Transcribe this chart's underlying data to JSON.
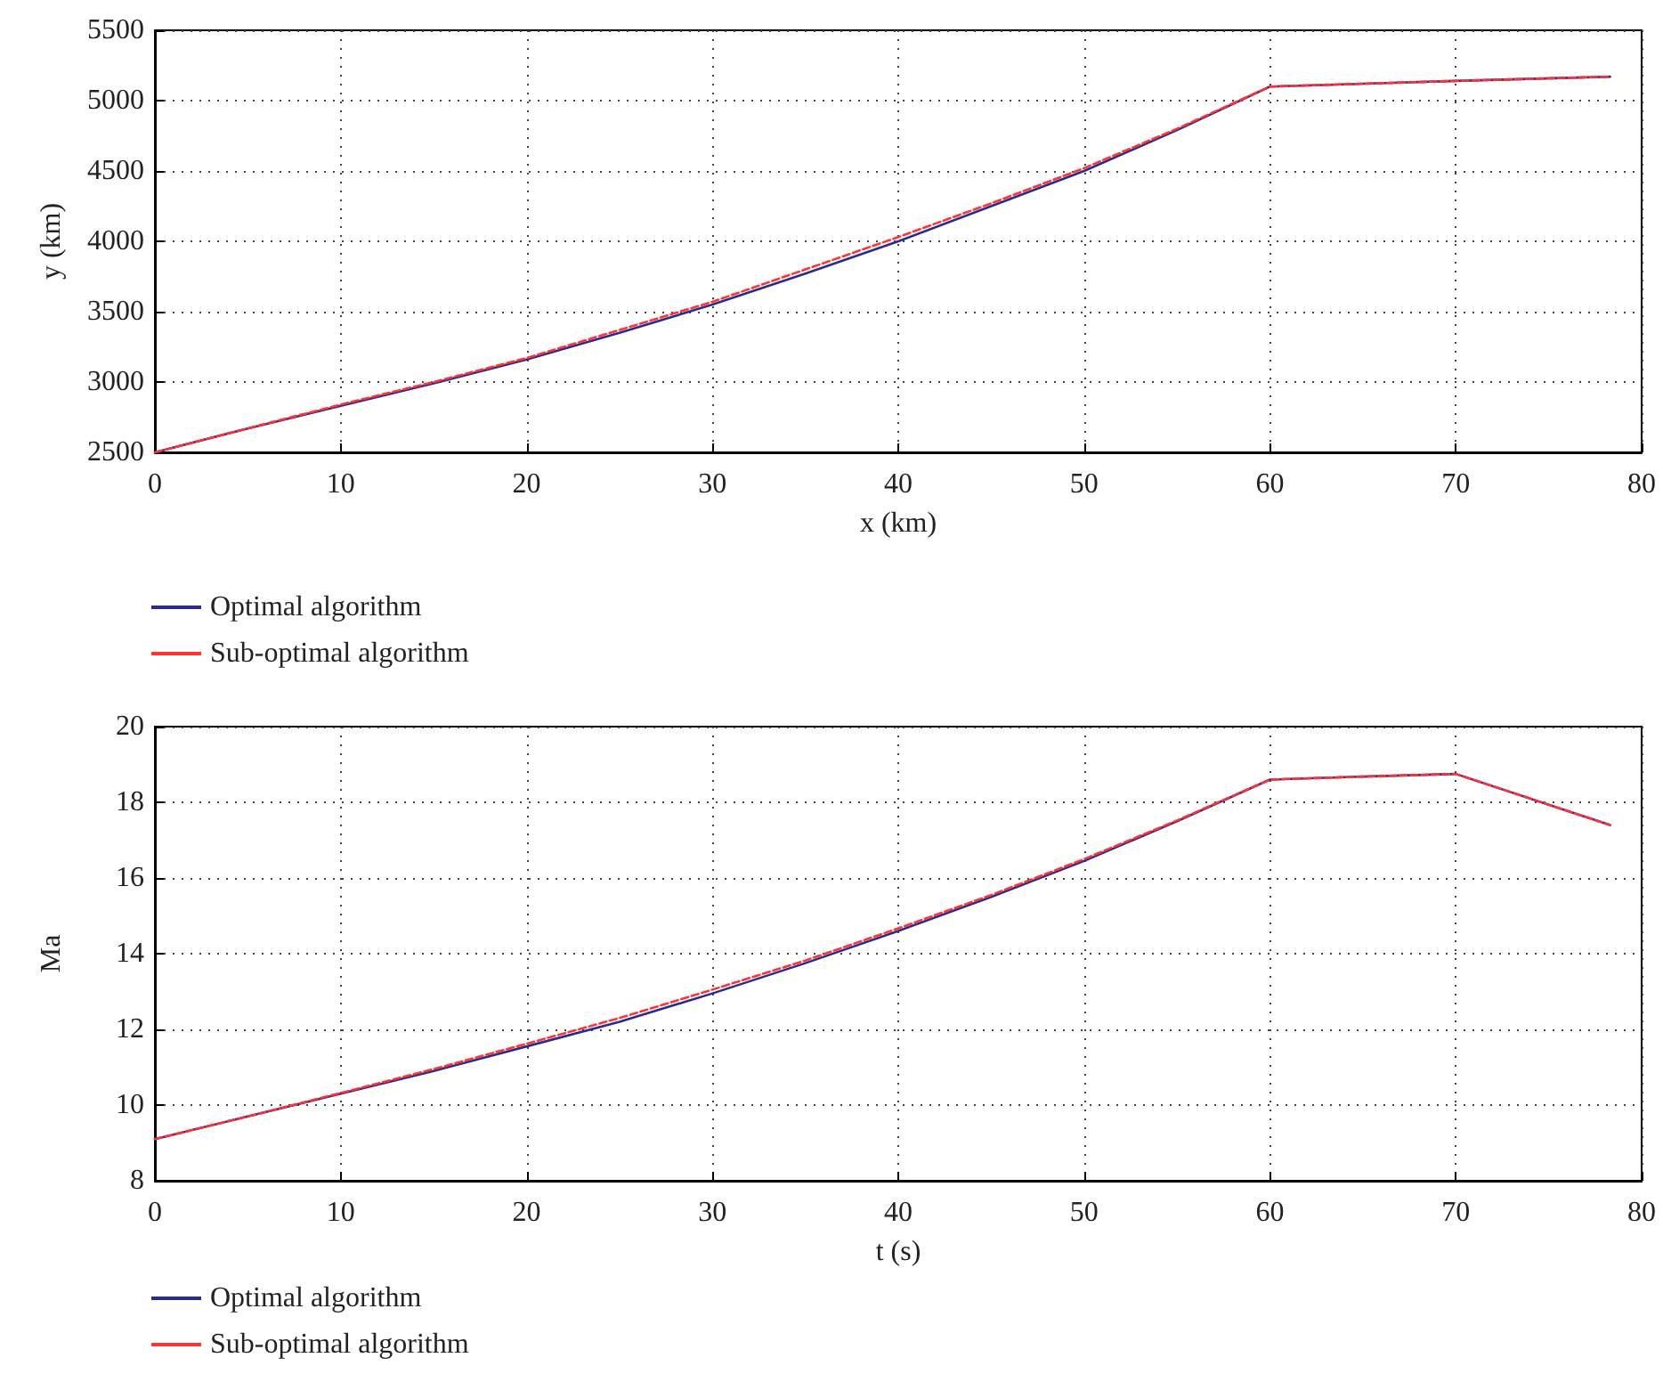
{
  "chart_data": [
    {
      "type": "line",
      "xlabel": "x (km)",
      "ylabel": "y (km)",
      "xlim": [
        0,
        80
      ],
      "xticks": [
        0,
        10,
        20,
        30,
        40,
        50,
        60,
        70,
        80
      ],
      "ylim": [
        2500,
        5500
      ],
      "yticks": [
        2500,
        3000,
        3500,
        4000,
        4500,
        5000,
        5500
      ],
      "grid": true,
      "legend": "bottom left",
      "marker": "none",
      "x": [
        0,
        5,
        10,
        15,
        20,
        25,
        30,
        35,
        40,
        45,
        50,
        55,
        60,
        65,
        70,
        78.3
      ],
      "series": [
        {
          "name": "Optimal algorithm",
          "color": "#2b2b8c",
          "line_style": "solid",
          "values": [
            2500,
            2670,
            2830,
            2990,
            3160,
            3350,
            3550,
            3770,
            4000,
            4250,
            4500,
            4790,
            5100,
            5120,
            5140,
            5170
          ]
        },
        {
          "name": "Sub-optimal algorithm",
          "color": "#ff3333",
          "line_style": "dashed",
          "values": [
            2500,
            2670,
            2840,
            3000,
            3170,
            3370,
            3570,
            3800,
            4030,
            4270,
            4520,
            4800,
            5100,
            5120,
            5140,
            5170
          ]
        }
      ]
    },
    {
      "type": "line",
      "xlabel": "t (s)",
      "ylabel": "Ma",
      "xlim": [
        0,
        80
      ],
      "xticks": [
        0,
        10,
        20,
        30,
        40,
        50,
        60,
        70,
        80
      ],
      "ylim": [
        8,
        20
      ],
      "yticks": [
        8,
        10,
        12,
        14,
        16,
        18,
        20
      ],
      "grid": true,
      "legend": "bottom left",
      "marker": "none",
      "x": [
        0,
        5,
        10,
        15,
        20,
        25,
        30,
        35,
        40,
        45,
        50,
        55,
        60,
        65,
        70,
        78.3
      ],
      "series": [
        {
          "name": "Optimal algorithm",
          "color": "#2b2b8c",
          "line_style": "solid",
          "values": [
            9.1,
            9.7,
            10.3,
            10.9,
            11.55,
            12.2,
            12.95,
            13.75,
            14.6,
            15.5,
            16.45,
            17.5,
            18.6,
            18.68,
            18.75,
            17.4
          ]
        },
        {
          "name": "Sub-optimal algorithm",
          "color": "#ff3333",
          "line_style": "dashed",
          "values": [
            9.1,
            9.7,
            10.32,
            10.95,
            11.62,
            12.3,
            13.05,
            13.82,
            14.67,
            15.55,
            16.5,
            17.52,
            18.6,
            18.68,
            18.75,
            17.4
          ]
        }
      ]
    }
  ]
}
